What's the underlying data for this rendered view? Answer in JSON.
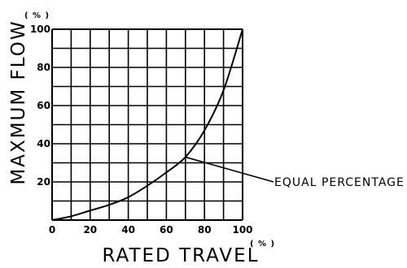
{
  "chart_data": {
    "type": "line",
    "xlabel": "RATED TRAVEL",
    "ylabel": "MAXMUM FLOW",
    "x_unit": "( % )",
    "y_unit": "( % )",
    "xlim": [
      0,
      100
    ],
    "ylim": [
      0,
      100
    ],
    "x_ticks": [
      0,
      20,
      40,
      60,
      80,
      100
    ],
    "x_tick_labels": [
      "0",
      "20",
      "40",
      "60",
      "80",
      "100"
    ],
    "y_ticks": [
      20,
      40,
      60,
      80,
      100
    ],
    "y_tick_labels": [
      "20",
      "40",
      "60",
      "80",
      "100"
    ],
    "grid": true,
    "series": [
      {
        "name": "EQUAL PERCENTAGE",
        "x": [
          0,
          10,
          20,
          30,
          40,
          50,
          60,
          70,
          80,
          90,
          100
        ],
        "y": [
          0,
          2,
          5,
          8,
          12,
          18,
          25,
          33,
          47,
          68,
          100
        ]
      }
    ],
    "annotations": [
      {
        "text": "EQUAL PERCENTAGE",
        "target_x": 70,
        "target_y": 33
      }
    ]
  },
  "colors": {
    "line": "#000000",
    "background": "#ffffff"
  }
}
